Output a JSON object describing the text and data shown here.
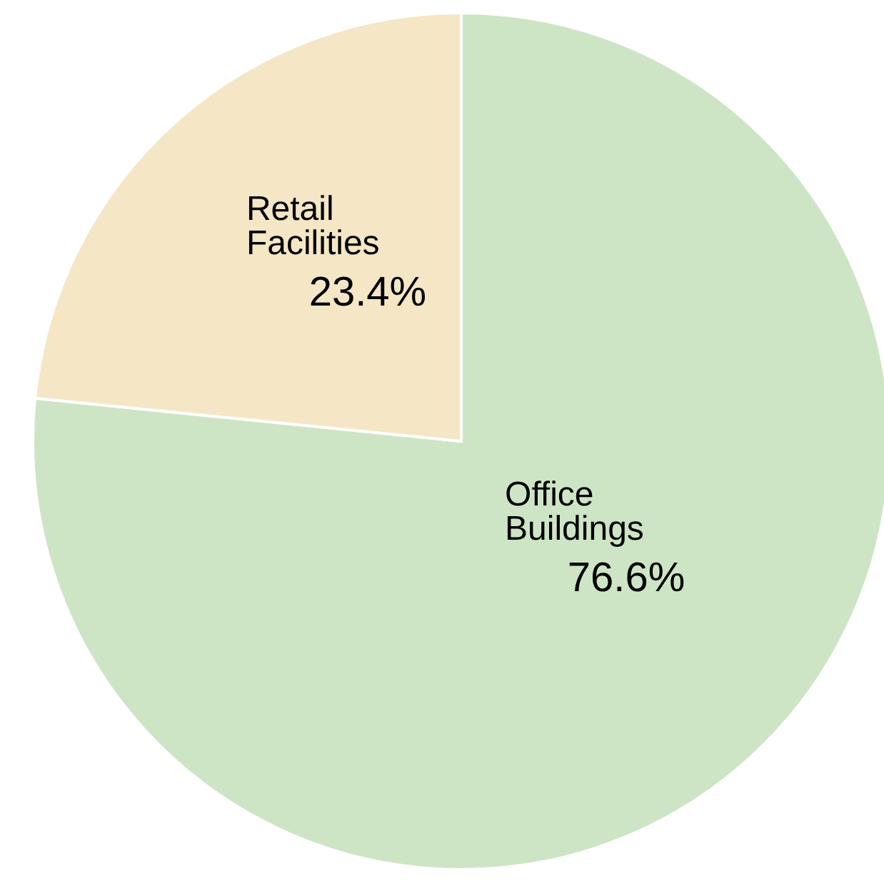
{
  "chart_data": {
    "type": "pie",
    "categories": [
      "Office Buildings",
      "Retail Facilities"
    ],
    "values": [
      76.6,
      23.4
    ],
    "colors": [
      "#cde5c5",
      "#f5e6c5"
    ],
    "value_labels": [
      "76.6%",
      "23.4%"
    ]
  }
}
